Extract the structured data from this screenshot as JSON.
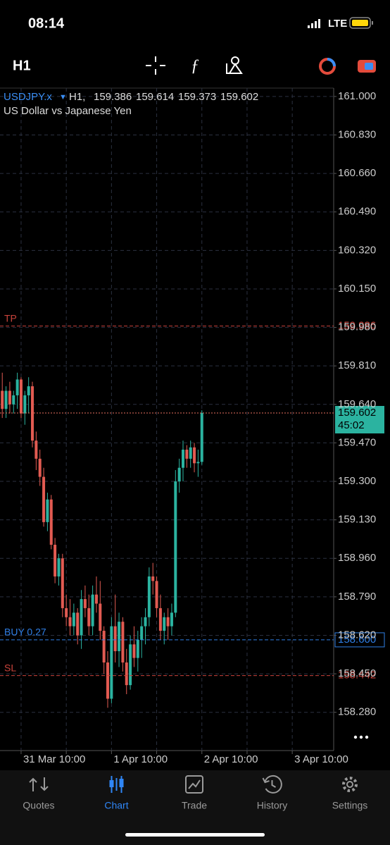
{
  "status_bar": {
    "time": "08:14",
    "network": "LTE"
  },
  "toolbar": {
    "timeframe": "H1"
  },
  "chart_data": {
    "type": "candlestick",
    "symbol": "USDJPY.x",
    "period_label": "H1,",
    "subtitle": "US Dollar vs Japanese Yen",
    "up_color": "#2bb3a0",
    "down_color": "#e25b52",
    "x": [
      -5,
      -4,
      -3,
      -2,
      -1,
      0,
      1,
      2,
      3,
      4,
      5,
      6,
      7,
      8,
      9,
      10,
      11,
      12,
      13,
      14,
      15,
      16,
      17,
      18,
      19,
      20,
      21,
      22,
      23,
      24,
      25,
      26,
      27,
      28,
      29,
      30,
      31,
      32,
      33,
      34,
      35,
      36,
      37,
      38,
      39,
      40,
      41,
      42,
      43,
      44,
      45,
      46,
      47,
      48
    ],
    "open": [
      159.7,
      159.62,
      159.7,
      159.64,
      159.68,
      159.75,
      159.6,
      159.68,
      159.72,
      159.48,
      159.4,
      159.32,
      159.12,
      159.22,
      159.02,
      158.88,
      158.96,
      158.74,
      158.7,
      158.66,
      158.72,
      158.62,
      158.78,
      158.74,
      158.66,
      158.8,
      158.76,
      158.64,
      158.5,
      158.34,
      158.66,
      158.55,
      158.68,
      158.5,
      158.4,
      158.58,
      158.52,
      158.6,
      158.66,
      158.7,
      158.88,
      158.86,
      158.74,
      158.64,
      158.7,
      158.66,
      158.72,
      159.3,
      159.36,
      159.44,
      159.4,
      159.45,
      159.38,
      159.386
    ],
    "high": [
      159.78,
      159.72,
      159.74,
      159.7,
      159.78,
      159.76,
      159.7,
      159.76,
      159.74,
      159.52,
      159.44,
      159.36,
      159.25,
      159.24,
      159.05,
      158.98,
      158.98,
      158.8,
      158.78,
      158.76,
      158.74,
      158.82,
      158.84,
      158.8,
      158.84,
      158.88,
      158.86,
      158.66,
      158.55,
      158.7,
      158.8,
      158.72,
      158.7,
      158.56,
      158.62,
      158.66,
      158.64,
      158.7,
      158.74,
      158.92,
      158.94,
      158.88,
      158.8,
      158.72,
      158.74,
      158.76,
      159.35,
      159.4,
      159.48,
      159.46,
      159.48,
      159.47,
      159.44,
      159.614
    ],
    "low": [
      159.58,
      159.58,
      159.6,
      159.6,
      159.62,
      159.58,
      159.55,
      159.6,
      159.45,
      159.35,
      159.28,
      159.1,
      159.08,
      159.0,
      158.85,
      158.84,
      158.7,
      158.66,
      158.62,
      158.62,
      158.58,
      158.56,
      158.7,
      158.62,
      158.62,
      158.72,
      158.6,
      158.45,
      158.3,
      158.32,
      158.5,
      158.48,
      158.46,
      158.36,
      158.38,
      158.48,
      158.46,
      158.52,
      158.58,
      158.66,
      158.8,
      158.7,
      158.6,
      158.58,
      158.6,
      158.62,
      158.7,
      159.25,
      159.3,
      159.36,
      159.36,
      159.34,
      159.32,
      159.373
    ],
    "close": [
      159.62,
      159.7,
      159.64,
      159.68,
      159.75,
      159.6,
      159.68,
      159.72,
      159.48,
      159.4,
      159.32,
      159.12,
      159.22,
      159.02,
      158.88,
      158.96,
      158.74,
      158.7,
      158.66,
      158.72,
      158.62,
      158.78,
      158.74,
      158.66,
      158.8,
      158.76,
      158.64,
      158.5,
      158.34,
      158.66,
      158.55,
      158.68,
      158.5,
      158.4,
      158.58,
      158.52,
      158.6,
      158.66,
      158.7,
      158.88,
      158.86,
      158.74,
      158.64,
      158.7,
      158.66,
      158.72,
      159.3,
      159.36,
      159.44,
      159.4,
      159.45,
      159.38,
      159.386,
      159.602
    ],
    "ylim": [
      158.111,
      161.037
    ],
    "yticks": [
      {
        "value": 161,
        "label": "161.000"
      },
      {
        "value": 160.83,
        "label": "160.830"
      },
      {
        "value": 160.66,
        "label": "160.660"
      },
      {
        "value": 160.49,
        "label": "160.490"
      },
      {
        "value": 160.32,
        "label": "160.320"
      },
      {
        "value": 160.15,
        "label": "160.150"
      },
      {
        "value": 159.98,
        "label": "159.980"
      },
      {
        "value": 159.81,
        "label": "159.810"
      },
      {
        "value": 159.64,
        "label": "159.640"
      },
      {
        "value": 159.47,
        "label": "159.470"
      },
      {
        "value": 159.3,
        "label": "159.300"
      },
      {
        "value": 159.13,
        "label": "159.130"
      },
      {
        "value": 158.96,
        "label": "158.960"
      },
      {
        "value": 158.79,
        "label": "158.790"
      },
      {
        "value": 158.62,
        "label": "158.620"
      },
      {
        "value": 158.45,
        "label": "158.450"
      },
      {
        "value": 158.28,
        "label": "158.280"
      }
    ],
    "xlim": [
      -5.6,
      83
    ],
    "xticks": [
      {
        "value": 0,
        "label": "31 Mar 10:00"
      },
      {
        "value": 24,
        "label": "1 Apr 10:00"
      },
      {
        "value": 48,
        "label": "2 Apr 10:00"
      },
      {
        "value": 72,
        "label": "3 Apr 10:00"
      }
    ],
    "xminor": [
      12,
      36,
      60
    ],
    "grid": true,
    "levels": [
      {
        "name": "TP",
        "value": 159.986,
        "color": "#c9433b"
      },
      {
        "name": "BUY 0.27",
        "value": 158.6,
        "label": "158.600",
        "color": "#2f7fe6"
      },
      {
        "name": "SL",
        "value": 158.442,
        "color": "#c9433b"
      }
    ],
    "timer": "45:02",
    "price_color": "#2bb3a0"
  },
  "tab_bar": {
    "tabs": [
      "Quotes",
      "Chart",
      "Trade",
      "History",
      "Settings"
    ],
    "active": 1
  }
}
